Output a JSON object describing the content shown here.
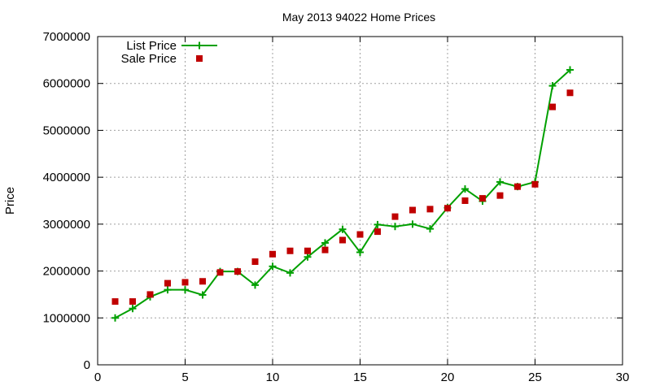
{
  "chart_data": {
    "type": "line",
    "title": "May 2013 94022 Home Prices",
    "xlabel": "",
    "ylabel": "Price",
    "xlim": [
      0,
      30
    ],
    "ylim": [
      0,
      7000000
    ],
    "x_ticks": [
      0,
      5,
      10,
      15,
      20,
      25,
      30
    ],
    "y_ticks": [
      0,
      1000000,
      2000000,
      3000000,
      4000000,
      5000000,
      6000000,
      7000000
    ],
    "grid": true,
    "legend_position": "top-left",
    "x": [
      1,
      2,
      3,
      4,
      5,
      6,
      7,
      8,
      9,
      10,
      11,
      12,
      13,
      14,
      15,
      16,
      17,
      18,
      19,
      20,
      21,
      22,
      23,
      24,
      25,
      26,
      27
    ],
    "series": [
      {
        "name": "List Price",
        "style": "linespoints",
        "marker": "plus",
        "color": "#00a000",
        "values": [
          1000000,
          1200000,
          1450000,
          1600000,
          1600000,
          1490000,
          1990000,
          1990000,
          1700000,
          2100000,
          1960000,
          2300000,
          2600000,
          2890000,
          2400000,
          2990000,
          2950000,
          3000000,
          2900000,
          3350000,
          3750000,
          3490000,
          3900000,
          3800000,
          3900000,
          5950000,
          6290000
        ]
      },
      {
        "name": "Sale Price",
        "style": "points",
        "marker": "square",
        "color": "#c00000",
        "values": [
          1350000,
          1350000,
          1500000,
          1740000,
          1760000,
          1780000,
          1970000,
          1990000,
          2200000,
          2360000,
          2430000,
          2430000,
          2450000,
          2660000,
          2780000,
          2840000,
          3160000,
          3300000,
          3320000,
          3340000,
          3500000,
          3550000,
          3610000,
          3800000,
          3850000,
          5500000,
          5800000
        ]
      }
    ]
  }
}
